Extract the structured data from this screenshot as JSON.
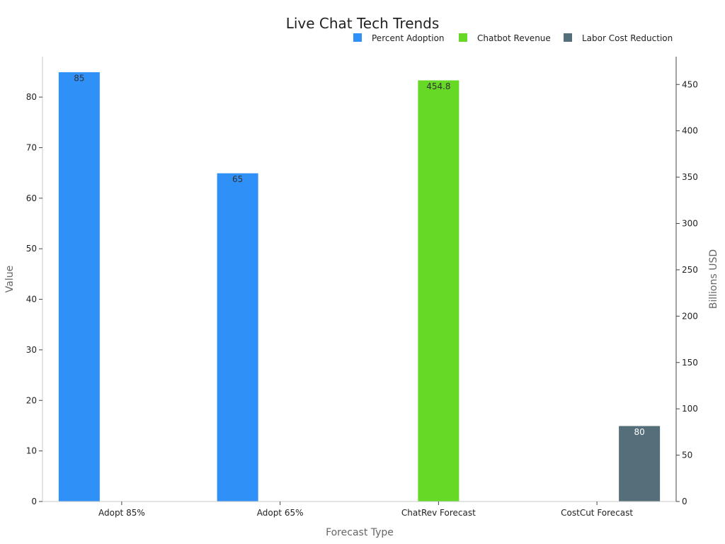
{
  "chart_data": {
    "type": "bar",
    "title": "Live Chat Tech Trends",
    "xlabel": "Forecast Type",
    "ylabel": "Value",
    "y2label": "Billions USD",
    "categories": [
      "Adopt 85%",
      "Adopt 65%",
      "ChatRev Forecast",
      "CostCut Forecast"
    ],
    "ylim": [
      0,
      88
    ],
    "y2lim": [
      0,
      480
    ],
    "yticks": [
      0,
      10,
      20,
      30,
      40,
      50,
      60,
      70,
      80
    ],
    "y2ticks": [
      0,
      50,
      100,
      150,
      200,
      250,
      300,
      350,
      400,
      450
    ],
    "legend_position": "top-right",
    "series": [
      {
        "name": "Percent Adoption",
        "color": "#2f91f8",
        "axis": "left",
        "values": [
          85,
          65,
          null,
          null
        ],
        "label_color": "#333333"
      },
      {
        "name": "Chatbot Revenue",
        "color": "#66d926",
        "axis": "right",
        "values": [
          null,
          null,
          454.8,
          null
        ],
        "label_color": "#333333"
      },
      {
        "name": "Labor Cost Reduction",
        "color": "#546e7a",
        "axis": "left",
        "values": [
          null,
          null,
          null,
          15
        ],
        "display_labels": [
          null,
          null,
          null,
          "80"
        ],
        "label_color": "#ffffff"
      }
    ]
  }
}
